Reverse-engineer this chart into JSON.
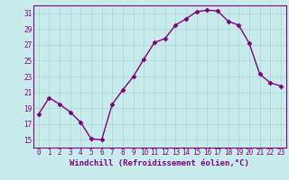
{
  "x": [
    0,
    1,
    2,
    3,
    4,
    5,
    6,
    7,
    8,
    9,
    10,
    11,
    12,
    13,
    14,
    15,
    16,
    17,
    18,
    19,
    20,
    21,
    22,
    23
  ],
  "y": [
    18.2,
    20.3,
    19.5,
    18.5,
    17.2,
    15.1,
    15.0,
    19.5,
    21.3,
    23.0,
    25.2,
    27.3,
    27.8,
    29.5,
    30.3,
    31.2,
    31.4,
    31.3,
    30.0,
    29.5,
    27.2,
    23.3,
    22.2,
    21.8
  ],
  "xlabel": "Windchill (Refroidissement éolien,°C)",
  "line_color": "#800080",
  "marker": "D",
  "markersize": 2.5,
  "linewidth": 1.0,
  "bg_color": "#c8ecec",
  "grid_color": "#aad4d4",
  "text_color": "#800080",
  "ylim": [
    14,
    32
  ],
  "yticks": [
    15,
    17,
    19,
    21,
    23,
    25,
    27,
    29,
    31
  ],
  "xticks": [
    0,
    1,
    2,
    3,
    4,
    5,
    6,
    7,
    8,
    9,
    10,
    11,
    12,
    13,
    14,
    15,
    16,
    17,
    18,
    19,
    20,
    21,
    22,
    23
  ],
  "tick_fontsize": 5.5,
  "label_fontsize": 6.5
}
